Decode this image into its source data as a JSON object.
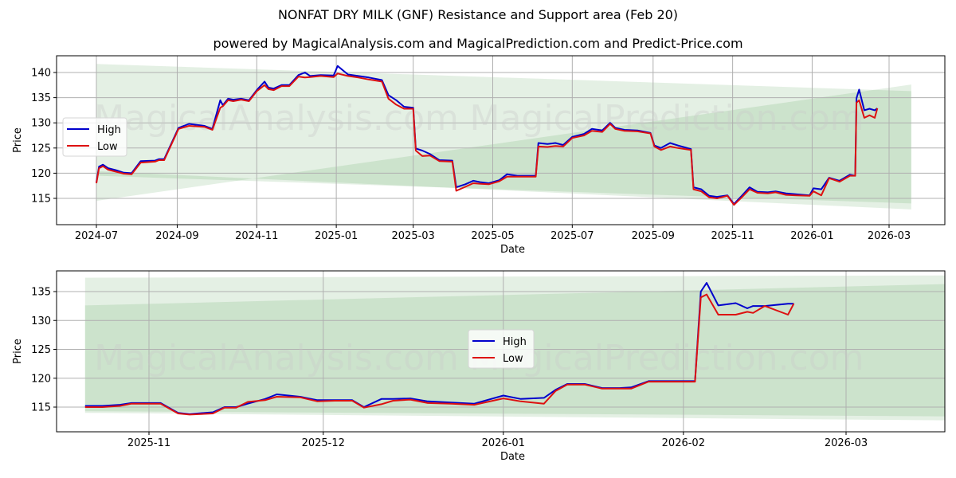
{
  "header": {
    "title": "NONFAT DRY MILK (GNF) Resistance and Support area (Feb 20)",
    "subtitle": "powered by MagicalAnalysis.com and MagicalPrediction.com and Predict-Price.com"
  },
  "watermarks": [
    "MagicalAnalysis.com",
    "MagicalPrediction.com"
  ],
  "colors": {
    "high": "#0000cc",
    "low": "#dd1111",
    "band_light": "#e3efe3",
    "band_dark": "#cfe5cf",
    "grid": "#b0b0b0"
  },
  "legend": {
    "high": "High",
    "low": "Low"
  },
  "chart_data": [
    {
      "type": "line",
      "title": "Full history",
      "xlabel": "Date",
      "ylabel": "Price",
      "ylim": [
        110.5,
        143
      ],
      "yticks": [
        115,
        120,
        125,
        130,
        135,
        140
      ],
      "xticks": [
        "2024-07",
        "2024-09",
        "2024-11",
        "2025-01",
        "2025-03",
        "2025-05",
        "2025-07",
        "2025-09",
        "2025-11",
        "2026-01",
        "2026-03"
      ],
      "grid": true,
      "legend_position": "upper left",
      "bands": [
        {
          "name": "resistance-area",
          "x_start": "2024-07-01",
          "x_end": "2026-03-18",
          "upper": [
            141.7,
            136.3
          ],
          "lower": [
            119.5,
            114.0
          ]
        },
        {
          "name": "support-area",
          "x_start": "2024-07-01",
          "x_end": "2026-03-18",
          "upper": [
            114.5,
            137.6
          ],
          "lower": [
            120.4,
            112.8
          ]
        }
      ],
      "x": [
        "2024-07-01",
        "2024-07-03",
        "2024-07-06",
        "2024-07-10",
        "2024-07-16",
        "2024-07-22",
        "2024-07-28",
        "2024-08-04",
        "2024-08-15",
        "2024-08-18",
        "2024-08-22",
        "2024-09-02",
        "2024-09-10",
        "2024-09-22",
        "2024-09-28",
        "2024-10-04",
        "2024-10-06",
        "2024-10-10",
        "2024-10-14",
        "2024-10-20",
        "2024-10-26",
        "2024-11-01",
        "2024-11-07",
        "2024-11-10",
        "2024-11-14",
        "2024-11-20",
        "2024-11-26",
        "2024-12-03",
        "2024-12-08",
        "2024-12-12",
        "2024-12-20",
        "2024-12-30",
        "2025-01-02",
        "2025-01-10",
        "2025-01-18",
        "2025-01-26",
        "2025-02-05",
        "2025-02-10",
        "2025-02-16",
        "2025-02-22",
        "2025-03-01",
        "2025-03-03",
        "2025-03-08",
        "2025-03-14",
        "2025-03-21",
        "2025-03-31",
        "2025-04-03",
        "2025-04-10",
        "2025-04-16",
        "2025-04-22",
        "2025-04-28",
        "2025-05-06",
        "2025-05-12",
        "2025-05-20",
        "2025-06-03",
        "2025-06-05",
        "2025-06-12",
        "2025-06-18",
        "2025-06-24",
        "2025-07-01",
        "2025-07-10",
        "2025-07-16",
        "2025-07-24",
        "2025-07-30",
        "2025-08-03",
        "2025-08-10",
        "2025-08-20",
        "2025-08-30",
        "2025-09-02",
        "2025-09-07",
        "2025-09-14",
        "2025-09-20",
        "2025-09-30",
        "2025-10-02",
        "2025-10-08",
        "2025-10-14",
        "2025-10-20",
        "2025-10-28",
        "2025-11-02",
        "2025-11-08",
        "2025-11-14",
        "2025-11-20",
        "2025-11-28",
        "2025-12-04",
        "2025-12-12",
        "2025-12-20",
        "2025-12-30",
        "2026-01-02",
        "2026-01-08",
        "2026-01-14",
        "2026-01-22",
        "2026-01-30",
        "2026-02-03",
        "2026-02-04",
        "2026-02-06",
        "2026-02-10",
        "2026-02-14",
        "2026-02-18",
        "2026-02-20"
      ],
      "series": [
        {
          "name": "High",
          "values": [
            118.2,
            121.3,
            121.7,
            121.0,
            120.6,
            120.1,
            120.0,
            122.4,
            122.5,
            122.8,
            122.8,
            129.0,
            129.8,
            129.4,
            128.8,
            134.5,
            133.5,
            134.8,
            134.6,
            134.8,
            134.5,
            136.5,
            138.2,
            137.0,
            136.8,
            137.5,
            137.5,
            139.5,
            140.0,
            139.3,
            139.5,
            139.4,
            141.3,
            139.6,
            139.3,
            139.0,
            138.5,
            135.5,
            134.5,
            133.2,
            133.0,
            124.9,
            124.5,
            123.8,
            122.6,
            122.5,
            117.2,
            117.8,
            118.5,
            118.2,
            118.0,
            118.6,
            119.8,
            119.5,
            119.5,
            126.0,
            125.8,
            126.0,
            125.6,
            127.2,
            127.8,
            128.8,
            128.5,
            130.0,
            129.0,
            128.6,
            128.5,
            128.0,
            125.5,
            125.0,
            126.0,
            125.5,
            124.8,
            117.2,
            116.8,
            115.5,
            115.3,
            115.6,
            113.9,
            115.5,
            117.2,
            116.3,
            116.2,
            116.4,
            116.0,
            115.8,
            115.6,
            117.0,
            116.8,
            119.1,
            118.5,
            119.7,
            119.5,
            134.9,
            136.6,
            132.5,
            132.8,
            132.5,
            132.9
          ]
        },
        {
          "name": "Low",
          "values": [
            118.0,
            121.0,
            121.4,
            120.7,
            120.3,
            119.9,
            119.8,
            122.1,
            122.3,
            122.6,
            122.6,
            128.8,
            129.4,
            129.2,
            128.6,
            133.0,
            133.3,
            134.5,
            134.3,
            134.6,
            134.3,
            136.3,
            137.5,
            136.7,
            136.5,
            137.3,
            137.3,
            139.2,
            139.0,
            139.1,
            139.3,
            139.1,
            139.8,
            139.3,
            139.0,
            138.6,
            138.2,
            134.8,
            133.6,
            132.8,
            132.8,
            124.5,
            123.4,
            123.5,
            122.4,
            122.3,
            116.5,
            117.3,
            118.0,
            117.9,
            117.8,
            118.4,
            119.3,
            119.3,
            119.3,
            125.3,
            125.2,
            125.4,
            125.3,
            127.0,
            127.5,
            128.4,
            128.2,
            129.8,
            128.8,
            128.4,
            128.3,
            127.9,
            125.3,
            124.6,
            125.3,
            125.0,
            124.6,
            116.8,
            116.4,
            115.2,
            115.0,
            115.5,
            113.7,
            115.2,
            116.8,
            116.1,
            116.0,
            116.2,
            115.7,
            115.6,
            115.5,
            116.4,
            115.6,
            119.0,
            118.3,
            119.5,
            119.5,
            134.0,
            134.5,
            131.0,
            131.5,
            131.0,
            132.9
          ]
        }
      ]
    },
    {
      "type": "line",
      "title": "Recent zoom",
      "xlabel": "Date",
      "ylabel": "Price",
      "ylim": [
        110.5,
        139
      ],
      "yticks": [
        115,
        120,
        125,
        130,
        135
      ],
      "xticks": [
        "2025-11",
        "2025-12",
        "2026-01",
        "2026-02",
        "2026-03"
      ],
      "grid": true,
      "legend_position": "center",
      "bands": [
        {
          "name": "resistance-area",
          "x_start": "2025-10-21",
          "x_end": "2026-03-18",
          "upper": [
            137.4,
            137.8
          ],
          "lower": [
            114.0,
            112.7
          ]
        },
        {
          "name": "support-area",
          "x_start": "2025-10-21",
          "x_end": "2026-03-18",
          "upper": [
            132.6,
            136.3
          ],
          "lower": [
            114.3,
            113.4
          ]
        }
      ],
      "x": [
        "2025-10-21",
        "2025-10-24",
        "2025-10-27",
        "2025-10-29",
        "2025-11-01",
        "2025-11-03",
        "2025-11-06",
        "2025-11-08",
        "2025-11-12",
        "2025-11-14",
        "2025-11-16",
        "2025-11-18",
        "2025-11-21",
        "2025-11-23",
        "2025-11-27",
        "2025-11-30",
        "2025-12-03",
        "2025-12-06",
        "2025-12-08",
        "2025-12-11",
        "2025-12-13",
        "2025-12-16",
        "2025-12-19",
        "2025-12-23",
        "2025-12-27",
        "2026-01-01",
        "2026-01-04",
        "2026-01-08",
        "2026-01-10",
        "2026-01-12",
        "2026-01-15",
        "2026-01-18",
        "2026-01-21",
        "2026-01-23",
        "2026-01-26",
        "2026-02-03",
        "2026-02-04",
        "2026-02-05",
        "2026-02-07",
        "2026-02-10",
        "2026-02-12",
        "2026-02-13",
        "2026-02-15",
        "2026-02-19",
        "2026-02-20"
      ],
      "series": [
        {
          "name": "High",
          "values": [
            115.2,
            115.2,
            115.4,
            115.7,
            115.7,
            115.7,
            114.0,
            113.8,
            114.1,
            115.0,
            115.0,
            115.6,
            116.4,
            117.2,
            116.8,
            116.2,
            116.2,
            116.2,
            115.0,
            116.4,
            116.4,
            116.5,
            116.0,
            115.8,
            115.6,
            117.0,
            116.4,
            116.6,
            118.0,
            119.0,
            119.0,
            118.3,
            118.3,
            118.4,
            119.5,
            119.5,
            135.0,
            136.5,
            132.6,
            133.0,
            132.1,
            132.5,
            132.5,
            132.9,
            132.9
          ]
        },
        {
          "name": "Low",
          "values": [
            115.0,
            115.0,
            115.2,
            115.6,
            115.6,
            115.6,
            113.9,
            113.7,
            113.9,
            114.9,
            114.9,
            115.9,
            116.2,
            116.8,
            116.7,
            116.0,
            116.1,
            116.1,
            114.9,
            115.5,
            116.1,
            116.3,
            115.7,
            115.6,
            115.4,
            116.5,
            116.0,
            115.6,
            117.8,
            118.9,
            118.9,
            118.2,
            118.2,
            118.2,
            119.4,
            119.4,
            134.0,
            134.5,
            131.0,
            131.0,
            131.5,
            131.3,
            132.5,
            131.0,
            132.9
          ]
        }
      ]
    }
  ]
}
